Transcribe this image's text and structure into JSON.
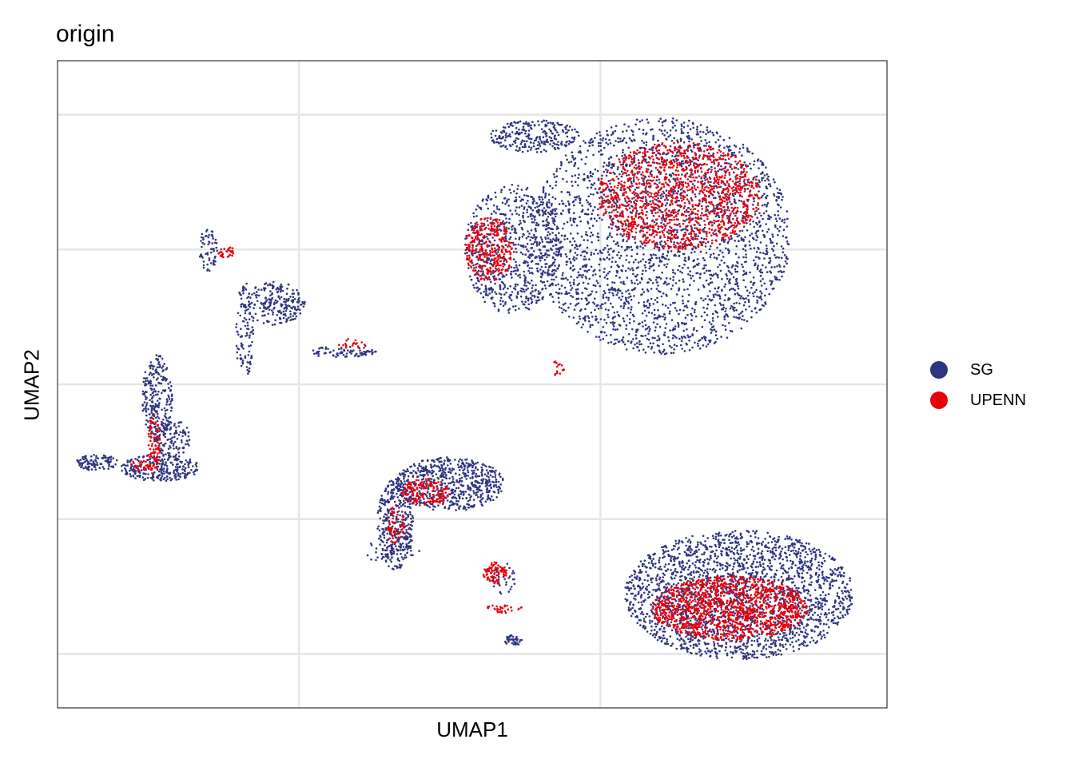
{
  "chart_data": {
    "type": "scatter",
    "title": "origin",
    "xlabel": "UMAP1",
    "ylabel": "UMAP2",
    "xlim": [
      -10,
      17.5
    ],
    "ylim": [
      -12,
      12
    ],
    "grid": true,
    "x_gridlines": [
      -2,
      8
    ],
    "y_gridlines": [
      -10,
      -5,
      0,
      5,
      10
    ],
    "tick_labels_shown": false,
    "legend_position": "right",
    "series": [
      {
        "name": "SG",
        "color": "#2e3580",
        "clusters": [
          {
            "cx": 10.0,
            "cy": 5.5,
            "rx": 4.3,
            "ry": 4.4,
            "n": 2600
          },
          {
            "cx": 5.1,
            "cy": 5.0,
            "rx": 1.6,
            "ry": 2.4,
            "n": 700
          },
          {
            "cx": 5.8,
            "cy": 9.2,
            "rx": 1.5,
            "ry": 0.6,
            "n": 250
          },
          {
            "cx": 12.6,
            "cy": -7.8,
            "rx": 3.8,
            "ry": 2.4,
            "n": 2300
          },
          {
            "cx": 3.0,
            "cy": -3.7,
            "rx": 1.8,
            "ry": 1.0,
            "n": 650
          },
          {
            "cx": 1.2,
            "cy": -5.2,
            "rx": 0.6,
            "ry": 1.7,
            "n": 350
          },
          {
            "cx": -6.6,
            "cy": -3.1,
            "rx": 1.3,
            "ry": 0.5,
            "n": 250
          },
          {
            "cx": -6.7,
            "cy": -0.5,
            "rx": 0.5,
            "ry": 1.6,
            "n": 250
          },
          {
            "cx": -6.2,
            "cy": -2.0,
            "rx": 0.6,
            "ry": 0.7,
            "n": 120
          },
          {
            "cx": -8.7,
            "cy": -2.9,
            "rx": 0.7,
            "ry": 0.3,
            "n": 100
          },
          {
            "cx": -2.8,
            "cy": 3.0,
            "rx": 1.0,
            "ry": 0.8,
            "n": 220
          },
          {
            "cx": -3.8,
            "cy": 2.0,
            "rx": 0.3,
            "ry": 1.8,
            "n": 100
          },
          {
            "cx": -5.0,
            "cy": 5.0,
            "rx": 0.3,
            "ry": 0.8,
            "n": 60
          },
          {
            "cx": -0.6,
            "cy": 1.2,
            "rx": 1.2,
            "ry": 0.2,
            "n": 80
          },
          {
            "cx": 1.0,
            "cy": -6.2,
            "rx": 1.0,
            "ry": 0.4,
            "n": 40
          },
          {
            "cx": 5.1,
            "cy": -9.5,
            "rx": 0.3,
            "ry": 0.2,
            "n": 40
          },
          {
            "cx": 4.8,
            "cy": -7.2,
            "rx": 0.4,
            "ry": 0.6,
            "n": 40
          }
        ]
      },
      {
        "name": "UPENN",
        "color": "#e8000b",
        "clusters": [
          {
            "cx": 10.6,
            "cy": 7.0,
            "rx": 2.7,
            "ry": 2.0,
            "n": 1300
          },
          {
            "cx": 4.3,
            "cy": 5.0,
            "rx": 0.8,
            "ry": 1.2,
            "n": 300
          },
          {
            "cx": 12.3,
            "cy": -8.3,
            "rx": 2.6,
            "ry": 1.2,
            "n": 1300
          },
          {
            "cx": 2.2,
            "cy": -4.0,
            "rx": 0.8,
            "ry": 0.5,
            "n": 150
          },
          {
            "cx": 1.2,
            "cy": -5.2,
            "rx": 0.3,
            "ry": 0.7,
            "n": 60
          },
          {
            "cx": 4.5,
            "cy": -7.0,
            "rx": 0.4,
            "ry": 0.4,
            "n": 80
          },
          {
            "cx": 4.8,
            "cy": -8.3,
            "rx": 0.6,
            "ry": 0.2,
            "n": 30
          },
          {
            "cx": -6.8,
            "cy": -2.2,
            "rx": 0.2,
            "ry": 1.2,
            "n": 80
          },
          {
            "cx": -7.2,
            "cy": -3.0,
            "rx": 0.4,
            "ry": 0.2,
            "n": 30
          },
          {
            "cx": -4.4,
            "cy": 4.9,
            "rx": 0.3,
            "ry": 0.2,
            "n": 30
          },
          {
            "cx": -0.2,
            "cy": 1.5,
            "rx": 0.6,
            "ry": 0.2,
            "n": 20
          },
          {
            "cx": 6.6,
            "cy": 0.6,
            "rx": 0.2,
            "ry": 0.3,
            "n": 15
          }
        ]
      }
    ]
  }
}
